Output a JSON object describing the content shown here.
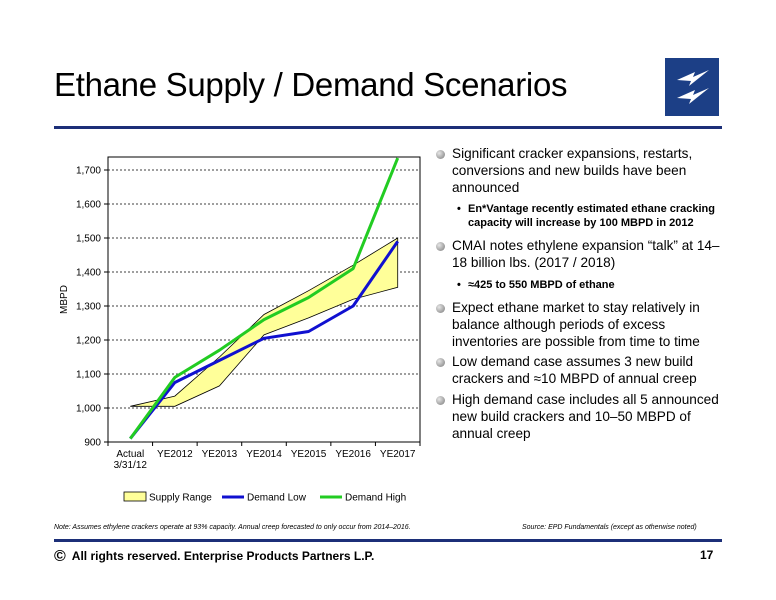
{
  "header": {
    "title": "Ethane Supply / Demand Scenarios"
  },
  "logo": {
    "icon": "enterprise-logo-icon",
    "color": "#1c3f86"
  },
  "chart_data": {
    "type": "line",
    "ylabel": "MBPD",
    "xlabel": "",
    "categories": [
      "Actual\n3/31/12",
      "YE2012",
      "YE2013",
      "YE2014",
      "YE2015",
      "YE2016",
      "YE2017"
    ],
    "yticks": [
      "900",
      "1,000",
      "1,100",
      "1,200",
      "1,300",
      "1,400",
      "1,500",
      "1,600",
      "1,700"
    ],
    "ylim": [
      900,
      1740
    ],
    "grid": true,
    "legend_position": "bottom",
    "supply_range": {
      "name": "Supply Range",
      "upper": [
        1005,
        1035,
        1150,
        1275,
        1345,
        1420,
        1500
      ],
      "lower": [
        1005,
        1005,
        1065,
        1215,
        1265,
        1320,
        1355
      ],
      "color": "#ffff99"
    },
    "series": [
      {
        "name": "Demand Low",
        "values": [
          910,
          1075,
          1140,
          1205,
          1225,
          1300,
          1490
        ],
        "color": "#1010d0"
      },
      {
        "name": "Demand High",
        "values": [
          910,
          1090,
          1170,
          1260,
          1325,
          1410,
          1735
        ],
        "color": "#22cc22"
      }
    ]
  },
  "bullets": [
    {
      "text": "Significant cracker expansions, restarts, conversions and new builds have been announced",
      "sub": [
        "En*Vantage recently estimated ethane cracking capacity will increase by 100 MBPD in 2012"
      ]
    },
    {
      "text": "CMAI notes ethylene expansion “talk” at 14–18 billion lbs. (2017 / 2018)",
      "sub": [
        "≈425 to 550 MBPD of ethane"
      ]
    },
    {
      "text": "Expect ethane market to stay relatively in balance although periods of excess inventories are possible from time to time",
      "sub": []
    },
    {
      "text": "Low demand case assumes 3 new build crackers and ≈10 MBPD of annual creep",
      "sub": []
    },
    {
      "text": "High demand case includes all 5 announced new build crackers and 10–50 MBPD of annual creep",
      "sub": []
    }
  ],
  "note": "Note: Assumes ethylene crackers operate at 93% capacity.  Annual creep forecasted to only occur from 2014–2016.",
  "source": "Source:  EPD Fundamentals (except as otherwise noted)",
  "footer": {
    "copyright_symbol": "©",
    "text": "All rights reserved. Enterprise Products Partners L.P.",
    "page": "17"
  }
}
